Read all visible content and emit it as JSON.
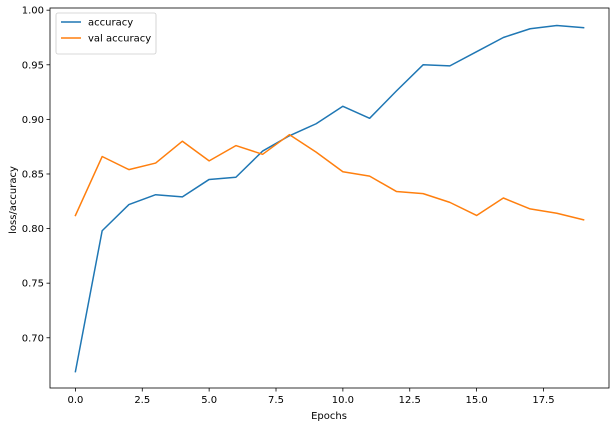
{
  "chart_data": {
    "type": "line",
    "title": "",
    "xlabel": "Epochs",
    "ylabel": "loss/accuracy",
    "x": [
      0,
      1,
      2,
      3,
      4,
      5,
      6,
      7,
      8,
      9,
      10,
      11,
      12,
      13,
      14,
      15,
      16,
      17,
      18,
      19
    ],
    "xlim": [
      -0.95,
      19.95
    ],
    "ylim": [
      0.654,
      1.002
    ],
    "xticks": [
      0.0,
      2.5,
      5.0,
      7.5,
      10.0,
      12.5,
      15.0,
      17.5
    ],
    "xtick_labels": [
      "0.0",
      "2.5",
      "5.0",
      "7.5",
      "10.0",
      "12.5",
      "15.0",
      "17.5"
    ],
    "yticks": [
      0.7,
      0.75,
      0.8,
      0.85,
      0.9,
      0.95,
      1.0
    ],
    "ytick_labels": [
      "0.70",
      "0.75",
      "0.80",
      "0.85",
      "0.90",
      "0.95",
      "1.00"
    ],
    "grid": false,
    "legend_position": "top-left",
    "series": [
      {
        "name": "accuracy",
        "color": "#1f77b4",
        "values": [
          0.669,
          0.798,
          0.822,
          0.831,
          0.829,
          0.845,
          0.847,
          0.871,
          0.885,
          0.896,
          0.912,
          0.901,
          0.926,
          0.95,
          0.949,
          0.962,
          0.975,
          0.983,
          0.986,
          0.984
        ]
      },
      {
        "name": "val accuracy",
        "color": "#ff7f0e",
        "values": [
          0.812,
          0.866,
          0.854,
          0.86,
          0.88,
          0.862,
          0.876,
          0.868,
          0.886,
          0.87,
          0.852,
          0.848,
          0.834,
          0.832,
          0.824,
          0.812,
          0.828,
          0.818,
          0.814,
          0.808
        ]
      }
    ]
  }
}
